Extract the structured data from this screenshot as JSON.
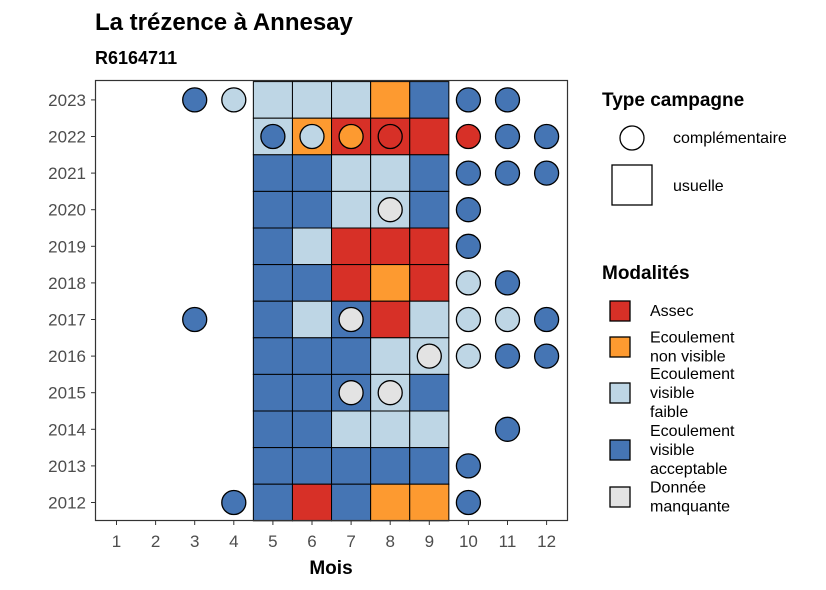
{
  "title": "La trézence à Annesay",
  "subtitle": "R6164711",
  "chart_data": {
    "type": "heatmap",
    "xlabel": "Mois",
    "ylabel": "",
    "x_categories": [
      "1",
      "2",
      "3",
      "4",
      "5",
      "6",
      "7",
      "8",
      "9",
      "10",
      "11",
      "12"
    ],
    "y_categories": [
      "2012",
      "2013",
      "2014",
      "2015",
      "2016",
      "2017",
      "2018",
      "2019",
      "2020",
      "2021",
      "2022",
      "2023"
    ],
    "colors": {
      "Assec": "#d73027",
      "Ecoulement non visible": "#fd9a30",
      "Ecoulement visible faible": "#bed6e5",
      "Ecoulement visible acceptable": "#4575b4",
      "Donnée manquante": "#e3e3e3"
    },
    "usuelle": [
      {
        "year": "2023",
        "month": 5,
        "value": "Ecoulement visible faible"
      },
      {
        "year": "2023",
        "month": 6,
        "value": "Ecoulement visible faible"
      },
      {
        "year": "2023",
        "month": 7,
        "value": "Ecoulement visible faible"
      },
      {
        "year": "2023",
        "month": 8,
        "value": "Ecoulement non visible"
      },
      {
        "year": "2023",
        "month": 9,
        "value": "Ecoulement visible acceptable"
      },
      {
        "year": "2022",
        "month": 5,
        "value": "Ecoulement visible faible"
      },
      {
        "year": "2022",
        "month": 6,
        "value": "Ecoulement non visible"
      },
      {
        "year": "2022",
        "month": 7,
        "value": "Assec"
      },
      {
        "year": "2022",
        "month": 8,
        "value": "Assec"
      },
      {
        "year": "2022",
        "month": 9,
        "value": "Assec"
      },
      {
        "year": "2021",
        "month": 5,
        "value": "Ecoulement visible acceptable"
      },
      {
        "year": "2021",
        "month": 6,
        "value": "Ecoulement visible acceptable"
      },
      {
        "year": "2021",
        "month": 7,
        "value": "Ecoulement visible faible"
      },
      {
        "year": "2021",
        "month": 8,
        "value": "Ecoulement visible faible"
      },
      {
        "year": "2021",
        "month": 9,
        "value": "Ecoulement visible acceptable"
      },
      {
        "year": "2020",
        "month": 5,
        "value": "Ecoulement visible acceptable"
      },
      {
        "year": "2020",
        "month": 6,
        "value": "Ecoulement visible acceptable"
      },
      {
        "year": "2020",
        "month": 7,
        "value": "Ecoulement visible faible"
      },
      {
        "year": "2020",
        "month": 8,
        "value": "Ecoulement visible faible"
      },
      {
        "year": "2020",
        "month": 9,
        "value": "Ecoulement visible acceptable"
      },
      {
        "year": "2019",
        "month": 5,
        "value": "Ecoulement visible acceptable"
      },
      {
        "year": "2019",
        "month": 6,
        "value": "Ecoulement visible faible"
      },
      {
        "year": "2019",
        "month": 7,
        "value": "Assec"
      },
      {
        "year": "2019",
        "month": 8,
        "value": "Assec"
      },
      {
        "year": "2019",
        "month": 9,
        "value": "Assec"
      },
      {
        "year": "2018",
        "month": 5,
        "value": "Ecoulement visible acceptable"
      },
      {
        "year": "2018",
        "month": 6,
        "value": "Ecoulement visible acceptable"
      },
      {
        "year": "2018",
        "month": 7,
        "value": "Assec"
      },
      {
        "year": "2018",
        "month": 8,
        "value": "Ecoulement non visible"
      },
      {
        "year": "2018",
        "month": 9,
        "value": "Assec"
      },
      {
        "year": "2017",
        "month": 5,
        "value": "Ecoulement visible acceptable"
      },
      {
        "year": "2017",
        "month": 6,
        "value": "Ecoulement visible faible"
      },
      {
        "year": "2017",
        "month": 7,
        "value": "Ecoulement visible acceptable"
      },
      {
        "year": "2017",
        "month": 8,
        "value": "Assec"
      },
      {
        "year": "2017",
        "month": 9,
        "value": "Ecoulement visible faible"
      },
      {
        "year": "2016",
        "month": 5,
        "value": "Ecoulement visible acceptable"
      },
      {
        "year": "2016",
        "month": 6,
        "value": "Ecoulement visible acceptable"
      },
      {
        "year": "2016",
        "month": 7,
        "value": "Ecoulement visible acceptable"
      },
      {
        "year": "2016",
        "month": 8,
        "value": "Ecoulement visible faible"
      },
      {
        "year": "2016",
        "month": 9,
        "value": "Ecoulement visible faible"
      },
      {
        "year": "2015",
        "month": 5,
        "value": "Ecoulement visible acceptable"
      },
      {
        "year": "2015",
        "month": 6,
        "value": "Ecoulement visible acceptable"
      },
      {
        "year": "2015",
        "month": 7,
        "value": "Ecoulement visible acceptable"
      },
      {
        "year": "2015",
        "month": 8,
        "value": "Ecoulement visible faible"
      },
      {
        "year": "2015",
        "month": 9,
        "value": "Ecoulement visible acceptable"
      },
      {
        "year": "2014",
        "month": 5,
        "value": "Ecoulement visible acceptable"
      },
      {
        "year": "2014",
        "month": 6,
        "value": "Ecoulement visible acceptable"
      },
      {
        "year": "2014",
        "month": 7,
        "value": "Ecoulement visible faible"
      },
      {
        "year": "2014",
        "month": 8,
        "value": "Ecoulement visible faible"
      },
      {
        "year": "2014",
        "month": 9,
        "value": "Ecoulement visible faible"
      },
      {
        "year": "2013",
        "month": 5,
        "value": "Ecoulement visible acceptable"
      },
      {
        "year": "2013",
        "month": 6,
        "value": "Ecoulement visible acceptable"
      },
      {
        "year": "2013",
        "month": 7,
        "value": "Ecoulement visible acceptable"
      },
      {
        "year": "2013",
        "month": 8,
        "value": "Ecoulement visible acceptable"
      },
      {
        "year": "2013",
        "month": 9,
        "value": "Ecoulement visible acceptable"
      },
      {
        "year": "2012",
        "month": 5,
        "value": "Ecoulement visible acceptable"
      },
      {
        "year": "2012",
        "month": 6,
        "value": "Assec"
      },
      {
        "year": "2012",
        "month": 7,
        "value": "Ecoulement visible acceptable"
      },
      {
        "year": "2012",
        "month": 8,
        "value": "Ecoulement non visible"
      },
      {
        "year": "2012",
        "month": 9,
        "value": "Ecoulement non visible"
      }
    ],
    "complementaire": [
      {
        "year": "2023",
        "month": 3,
        "value": "Ecoulement visible acceptable"
      },
      {
        "year": "2023",
        "month": 4,
        "value": "Ecoulement visible faible"
      },
      {
        "year": "2023",
        "month": 10,
        "value": "Ecoulement visible acceptable"
      },
      {
        "year": "2023",
        "month": 11,
        "value": "Ecoulement visible acceptable"
      },
      {
        "year": "2022",
        "month": 5,
        "value": "Ecoulement visible acceptable"
      },
      {
        "year": "2022",
        "month": 6,
        "value": "Ecoulement visible faible"
      },
      {
        "year": "2022",
        "month": 7,
        "value": "Ecoulement non visible"
      },
      {
        "year": "2022",
        "month": 8,
        "value": "Assec"
      },
      {
        "year": "2022",
        "month": 10,
        "value": "Assec"
      },
      {
        "year": "2022",
        "month": 11,
        "value": "Ecoulement visible acceptable"
      },
      {
        "year": "2022",
        "month": 12,
        "value": "Ecoulement visible acceptable"
      },
      {
        "year": "2021",
        "month": 10,
        "value": "Ecoulement visible acceptable"
      },
      {
        "year": "2021",
        "month": 11,
        "value": "Ecoulement visible acceptable"
      },
      {
        "year": "2021",
        "month": 12,
        "value": "Ecoulement visible acceptable"
      },
      {
        "year": "2020",
        "month": 8,
        "value": "Donnée manquante"
      },
      {
        "year": "2020",
        "month": 10,
        "value": "Ecoulement visible acceptable"
      },
      {
        "year": "2019",
        "month": 10,
        "value": "Ecoulement visible acceptable"
      },
      {
        "year": "2018",
        "month": 10,
        "value": "Ecoulement visible faible"
      },
      {
        "year": "2018",
        "month": 11,
        "value": "Ecoulement visible acceptable"
      },
      {
        "year": "2017",
        "month": 3,
        "value": "Ecoulement visible acceptable"
      },
      {
        "year": "2017",
        "month": 7,
        "value": "Donnée manquante"
      },
      {
        "year": "2017",
        "month": 10,
        "value": "Ecoulement visible faible"
      },
      {
        "year": "2017",
        "month": 11,
        "value": "Ecoulement visible faible"
      },
      {
        "year": "2017",
        "month": 12,
        "value": "Ecoulement visible acceptable"
      },
      {
        "year": "2016",
        "month": 9,
        "value": "Donnée manquante"
      },
      {
        "year": "2016",
        "month": 10,
        "value": "Ecoulement visible faible"
      },
      {
        "year": "2016",
        "month": 11,
        "value": "Ecoulement visible acceptable"
      },
      {
        "year": "2016",
        "month": 12,
        "value": "Ecoulement visible acceptable"
      },
      {
        "year": "2015",
        "month": 7,
        "value": "Donnée manquante"
      },
      {
        "year": "2015",
        "month": 8,
        "value": "Donnée manquante"
      },
      {
        "year": "2014",
        "month": 11,
        "value": "Ecoulement visible acceptable"
      },
      {
        "year": "2013",
        "month": 10,
        "value": "Ecoulement visible acceptable"
      },
      {
        "year": "2012",
        "month": 4,
        "value": "Ecoulement visible acceptable"
      },
      {
        "year": "2012",
        "month": 10,
        "value": "Ecoulement visible acceptable"
      }
    ],
    "legend_type": {
      "title": "Type campagne",
      "items": [
        {
          "label": "complémentaire",
          "shape": "circle"
        },
        {
          "label": "usuelle",
          "shape": "square"
        }
      ]
    },
    "legend_modalites": {
      "title": "Modalités",
      "items": [
        {
          "lines": [
            "Assec"
          ],
          "color": "#d73027"
        },
        {
          "lines": [
            "Ecoulement",
            "non visible"
          ],
          "color": "#fd9a30"
        },
        {
          "lines": [
            "Ecoulement",
            "visible",
            "faible"
          ],
          "color": "#bed6e5"
        },
        {
          "lines": [
            "Ecoulement",
            "visible",
            "acceptable"
          ],
          "color": "#4575b4"
        },
        {
          "lines": [
            "Donnée",
            "manquante"
          ],
          "color": "#e3e3e3"
        }
      ]
    },
    "legend_position": "right",
    "grid": false
  }
}
